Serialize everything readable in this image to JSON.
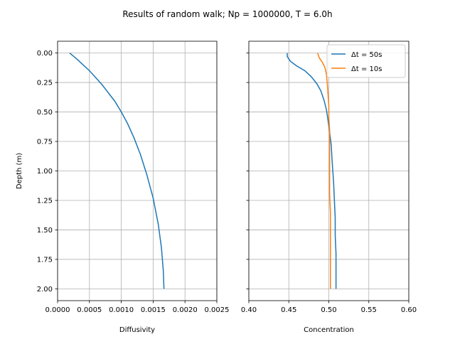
{
  "suptitle": "Results of random walk; Np = 1000000, T = 6.0h",
  "colors": {
    "series1": "#1f77b4",
    "series2": "#ff7f0e",
    "grid": "#b0b0b0"
  },
  "chart_data": [
    {
      "type": "line",
      "title": "",
      "xlabel": "Diffusivity",
      "ylabel": "Depth (m)",
      "xlim": [
        0.0,
        0.0025
      ],
      "ylim": [
        2.1,
        -0.1
      ],
      "y_inverted": true,
      "grid": true,
      "xticks": [
        "0.0000",
        "0.0005",
        "0.0010",
        "0.0015",
        "0.0020",
        "0.0025"
      ],
      "yticks": [
        "0.00",
        "0.25",
        "0.50",
        "0.75",
        "1.00",
        "1.25",
        "1.50",
        "1.75",
        "2.00"
      ],
      "series": [
        {
          "color": "#1f77b4",
          "points": [
            [
              0.00019,
              0.0
            ],
            [
              0.0003,
              0.05
            ],
            [
              0.0004,
              0.1
            ],
            [
              0.0005,
              0.15
            ],
            [
              0.0006,
              0.21
            ],
            [
              0.0007,
              0.27
            ],
            [
              0.0008,
              0.34
            ],
            [
              0.0009,
              0.41
            ],
            [
              0.001,
              0.5
            ],
            [
              0.0011,
              0.6
            ],
            [
              0.0012,
              0.72
            ],
            [
              0.0013,
              0.86
            ],
            [
              0.0014,
              1.03
            ],
            [
              0.0015,
              1.23
            ],
            [
              0.00158,
              1.45
            ],
            [
              0.00163,
              1.65
            ],
            [
              0.00166,
              1.85
            ],
            [
              0.00167,
              2.0
            ]
          ]
        }
      ]
    },
    {
      "type": "line",
      "title": "",
      "xlabel": "Concentration",
      "ylabel": "",
      "xlim": [
        0.4,
        0.6
      ],
      "ylim": [
        2.1,
        -0.1
      ],
      "y_inverted": true,
      "shared_y": true,
      "grid": true,
      "legend_position": "top-right",
      "xticks": [
        "0.40",
        "0.45",
        "0.50",
        "0.55",
        "0.60"
      ],
      "series": [
        {
          "name": "Δt = 50s",
          "color": "#1f77b4",
          "points": [
            [
              0.448,
              0.0
            ],
            [
              0.448,
              0.03
            ],
            [
              0.452,
              0.07
            ],
            [
              0.46,
              0.11
            ],
            [
              0.47,
              0.15
            ],
            [
              0.478,
              0.2
            ],
            [
              0.485,
              0.26
            ],
            [
              0.49,
              0.32
            ],
            [
              0.494,
              0.4
            ],
            [
              0.497,
              0.48
            ],
            [
              0.499,
              0.57
            ],
            [
              0.501,
              0.67
            ],
            [
              0.503,
              0.78
            ],
            [
              0.504,
              0.9
            ],
            [
              0.505,
              1.0
            ],
            [
              0.506,
              1.1
            ],
            [
              0.507,
              1.25
            ],
            [
              0.508,
              1.4
            ],
            [
              0.508,
              1.55
            ],
            [
              0.509,
              1.7
            ],
            [
              0.509,
              1.85
            ],
            [
              0.509,
              2.0
            ]
          ]
        },
        {
          "name": "Δt = 10s",
          "color": "#ff7f0e",
          "points": [
            [
              0.486,
              0.0
            ],
            [
              0.488,
              0.04
            ],
            [
              0.492,
              0.08
            ],
            [
              0.495,
              0.12
            ],
            [
              0.497,
              0.18
            ],
            [
              0.498,
              0.25
            ],
            [
              0.499,
              0.35
            ],
            [
              0.5,
              0.45
            ],
            [
              0.5,
              0.55
            ],
            [
              0.501,
              0.65
            ],
            [
              0.501,
              0.75
            ],
            [
              0.501,
              0.9
            ],
            [
              0.501,
              1.05
            ],
            [
              0.501,
              1.2
            ],
            [
              0.502,
              1.35
            ],
            [
              0.502,
              1.5
            ],
            [
              0.502,
              1.65
            ],
            [
              0.502,
              1.8
            ],
            [
              0.502,
              1.95
            ],
            [
              0.502,
              2.0
            ]
          ]
        }
      ]
    }
  ]
}
